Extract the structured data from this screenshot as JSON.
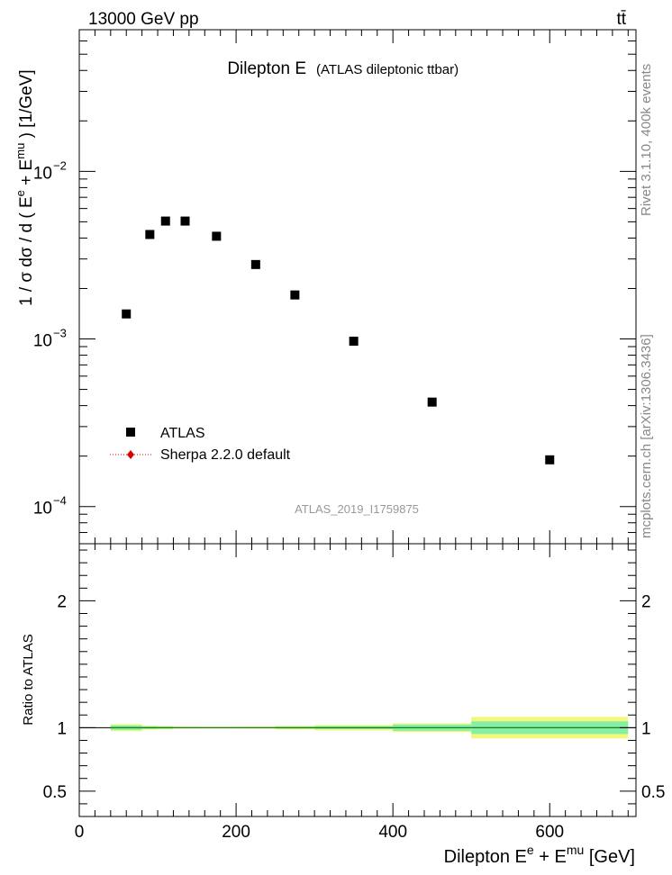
{
  "header": {
    "energy_label": "13000 GeV pp",
    "process_label": "tt̄"
  },
  "side_labels": {
    "rivet": "Rivet 3.1.10,  400k events",
    "mcplots": "mcplots.cern.ch [arXiv:1306.3436]"
  },
  "chart_data": [
    {
      "type": "scatter",
      "title": "Dilepton E",
      "subtitle": "(ATLAS dileptonic ttbar)",
      "analysis_label": "ATLAS_2019_I1759875",
      "ylabel": "1 / σ  dσ / d ( E^e + E^mu ) [1/GeV]",
      "yscale": "log",
      "xlim": [
        0,
        710
      ],
      "ylim": [
        6e-05,
        0.07
      ],
      "y_ticks": [
        {
          "value": 0.01,
          "mantissa": "10",
          "exponent": "−2"
        },
        {
          "value": 0.001,
          "mantissa": "10",
          "exponent": "−3"
        },
        {
          "value": 0.0001,
          "mantissa": "10",
          "exponent": "−4"
        }
      ],
      "legend_placement": "middle-left",
      "series": [
        {
          "name": "ATLAS",
          "marker": "square",
          "color": "#000000",
          "x": [
            60,
            90,
            110,
            135,
            175,
            225,
            275,
            350,
            450,
            600
          ],
          "y": [
            0.00141,
            0.0042,
            0.00505,
            0.00505,
            0.0041,
            0.00278,
            0.00183,
            0.00097,
            0.00042,
            0.00019
          ]
        },
        {
          "name": "Sherpa 2.2.0 default",
          "marker": "diamond",
          "color": "#d40000",
          "x": [],
          "y": []
        }
      ]
    },
    {
      "type": "area",
      "ylabel": "Ratio to ATLAS",
      "xlabel": "Dilepton E^e + E^mu [GeV]",
      "xlim": [
        0,
        710
      ],
      "ylim": [
        0.3,
        2.45
      ],
      "x_ticks": [
        "0",
        "200",
        "400",
        "600"
      ],
      "y_ticks": [
        "0.5",
        "1",
        "2"
      ],
      "reference_line": 1,
      "band_colors": {
        "inner": "#86efa5",
        "outer": "#f2f97a"
      },
      "bins": [
        {
          "lo": 40,
          "hi": 80,
          "inner": 0.018,
          "outer": 0.028
        },
        {
          "lo": 80,
          "hi": 100,
          "inner": 0.01,
          "outer": 0.016
        },
        {
          "lo": 100,
          "hi": 120,
          "inner": 0.008,
          "outer": 0.013
        },
        {
          "lo": 120,
          "hi": 150,
          "inner": 0.005,
          "outer": 0.008
        },
        {
          "lo": 150,
          "hi": 200,
          "inner": 0.004,
          "outer": 0.007
        },
        {
          "lo": 200,
          "hi": 250,
          "inner": 0.005,
          "outer": 0.008
        },
        {
          "lo": 250,
          "hi": 300,
          "inner": 0.008,
          "outer": 0.014
        },
        {
          "lo": 300,
          "hi": 400,
          "inner": 0.012,
          "outer": 0.022
        },
        {
          "lo": 400,
          "hi": 500,
          "inner": 0.025,
          "outer": 0.035
        },
        {
          "lo": 500,
          "hi": 700,
          "inner": 0.05,
          "outer": 0.085
        }
      ]
    }
  ]
}
